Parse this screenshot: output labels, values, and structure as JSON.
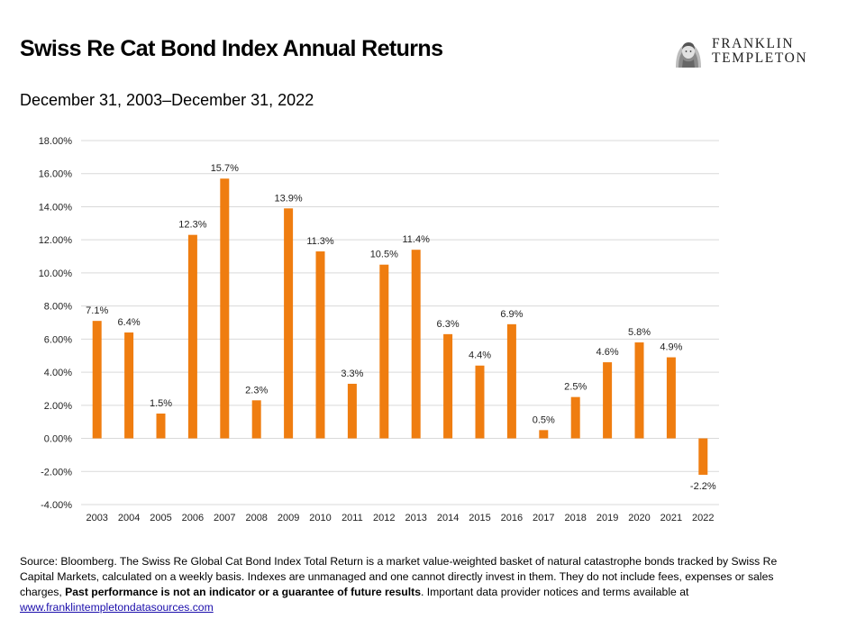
{
  "header": {
    "title": "Swiss Re Cat Bond Index Annual Returns",
    "subtitle": "December 31, 2003–December 31, 2022"
  },
  "logo": {
    "line1": "FRANKLIN",
    "line2": "TEMPLETON",
    "icon": "benjamin-franklin-portrait-icon"
  },
  "chart_data": {
    "type": "bar",
    "categories": [
      "2003",
      "2004",
      "2005",
      "2006",
      "2007",
      "2008",
      "2009",
      "2010",
      "2011",
      "2012",
      "2013",
      "2014",
      "2015",
      "2016",
      "2017",
      "2018",
      "2019",
      "2020",
      "2021",
      "2022"
    ],
    "values": [
      7.1,
      6.4,
      1.5,
      12.3,
      15.7,
      2.3,
      13.9,
      11.3,
      3.3,
      10.5,
      11.4,
      6.3,
      4.4,
      6.9,
      0.5,
      2.5,
      4.6,
      5.8,
      4.9,
      -2.2
    ],
    "data_labels": [
      "7.1%",
      "6.4%",
      "1.5%",
      "12.3%",
      "15.7%",
      "2.3%",
      "13.9%",
      "11.3%",
      "3.3%",
      "10.5%",
      "11.4%",
      "6.3%",
      "4.4%",
      "6.9%",
      "0.5%",
      "2.5%",
      "4.6%",
      "5.8%",
      "4.9%",
      "-2.2%"
    ],
    "y_ticks": [
      18,
      16,
      14,
      12,
      10,
      8,
      6,
      4,
      2,
      0,
      -2,
      -4
    ],
    "y_tick_labels": [
      "18.00%",
      "16.00%",
      "14.00%",
      "12.00%",
      "10.00%",
      "8.00%",
      "6.00%",
      "4.00%",
      "2.00%",
      "0.00%",
      "-2.00%",
      "-4.00%"
    ],
    "ylim": [
      -4,
      18
    ],
    "grid": true,
    "bar_color": "#ef7d10",
    "grid_color": "#d9d9d9",
    "legend": "none"
  },
  "footnote": {
    "text_before": "Source: Bloomberg. The Swiss Re Global Cat Bond Index Total Return is a market value-weighted basket of natural catastrophe bonds tracked by Swiss Re Capital Markets, calculated on a weekly basis. Indexes are unmanaged and one cannot directly invest in them. They do not include fees, expenses or sales charges, ",
    "bold": "Past performance is not an indicator or a guarantee of future results",
    "text_after": ". Important data provider notices and terms available at",
    "link": "www.franklintempletondatasources.com"
  }
}
